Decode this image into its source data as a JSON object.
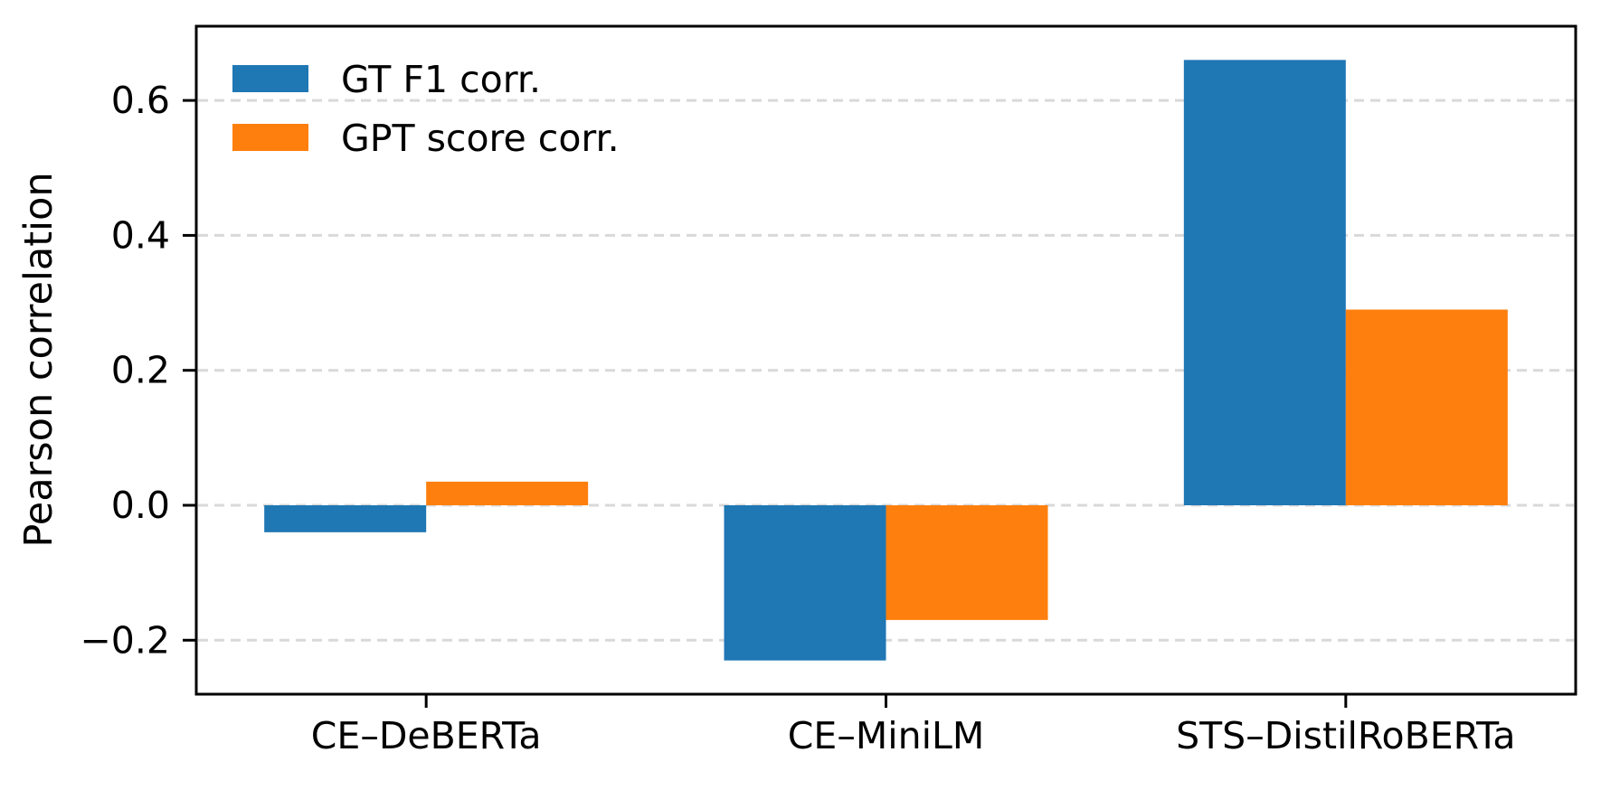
{
  "chart_data": {
    "type": "bar",
    "title": "",
    "ylabel": "Pearson correlation",
    "xlabel": "",
    "categories": [
      "CE–DeBERTa",
      "CE–MiniLM",
      "STS–DistilRoBERTa"
    ],
    "series": [
      {
        "name": "GT F1 corr.",
        "color": "#1f77b4",
        "values": [
          -0.04,
          -0.23,
          0.66
        ]
      },
      {
        "name": "GPT score corr.",
        "color": "#ff7f0e",
        "values": [
          0.035,
          -0.17,
          0.29
        ]
      }
    ],
    "yticks": [
      -0.2,
      0.0,
      0.2,
      0.4,
      0.6
    ],
    "ytick_labels": [
      "−0.2",
      "0.0",
      "0.2",
      "0.4",
      "0.6"
    ],
    "ylim": [
      -0.28,
      0.71
    ],
    "grid": "horizontal-dashed",
    "gridline_color": "#d9d9d9",
    "axis_color": "#000000",
    "background_color": "#ffffff",
    "legend_position": "upper left",
    "legend_frame": false
  }
}
